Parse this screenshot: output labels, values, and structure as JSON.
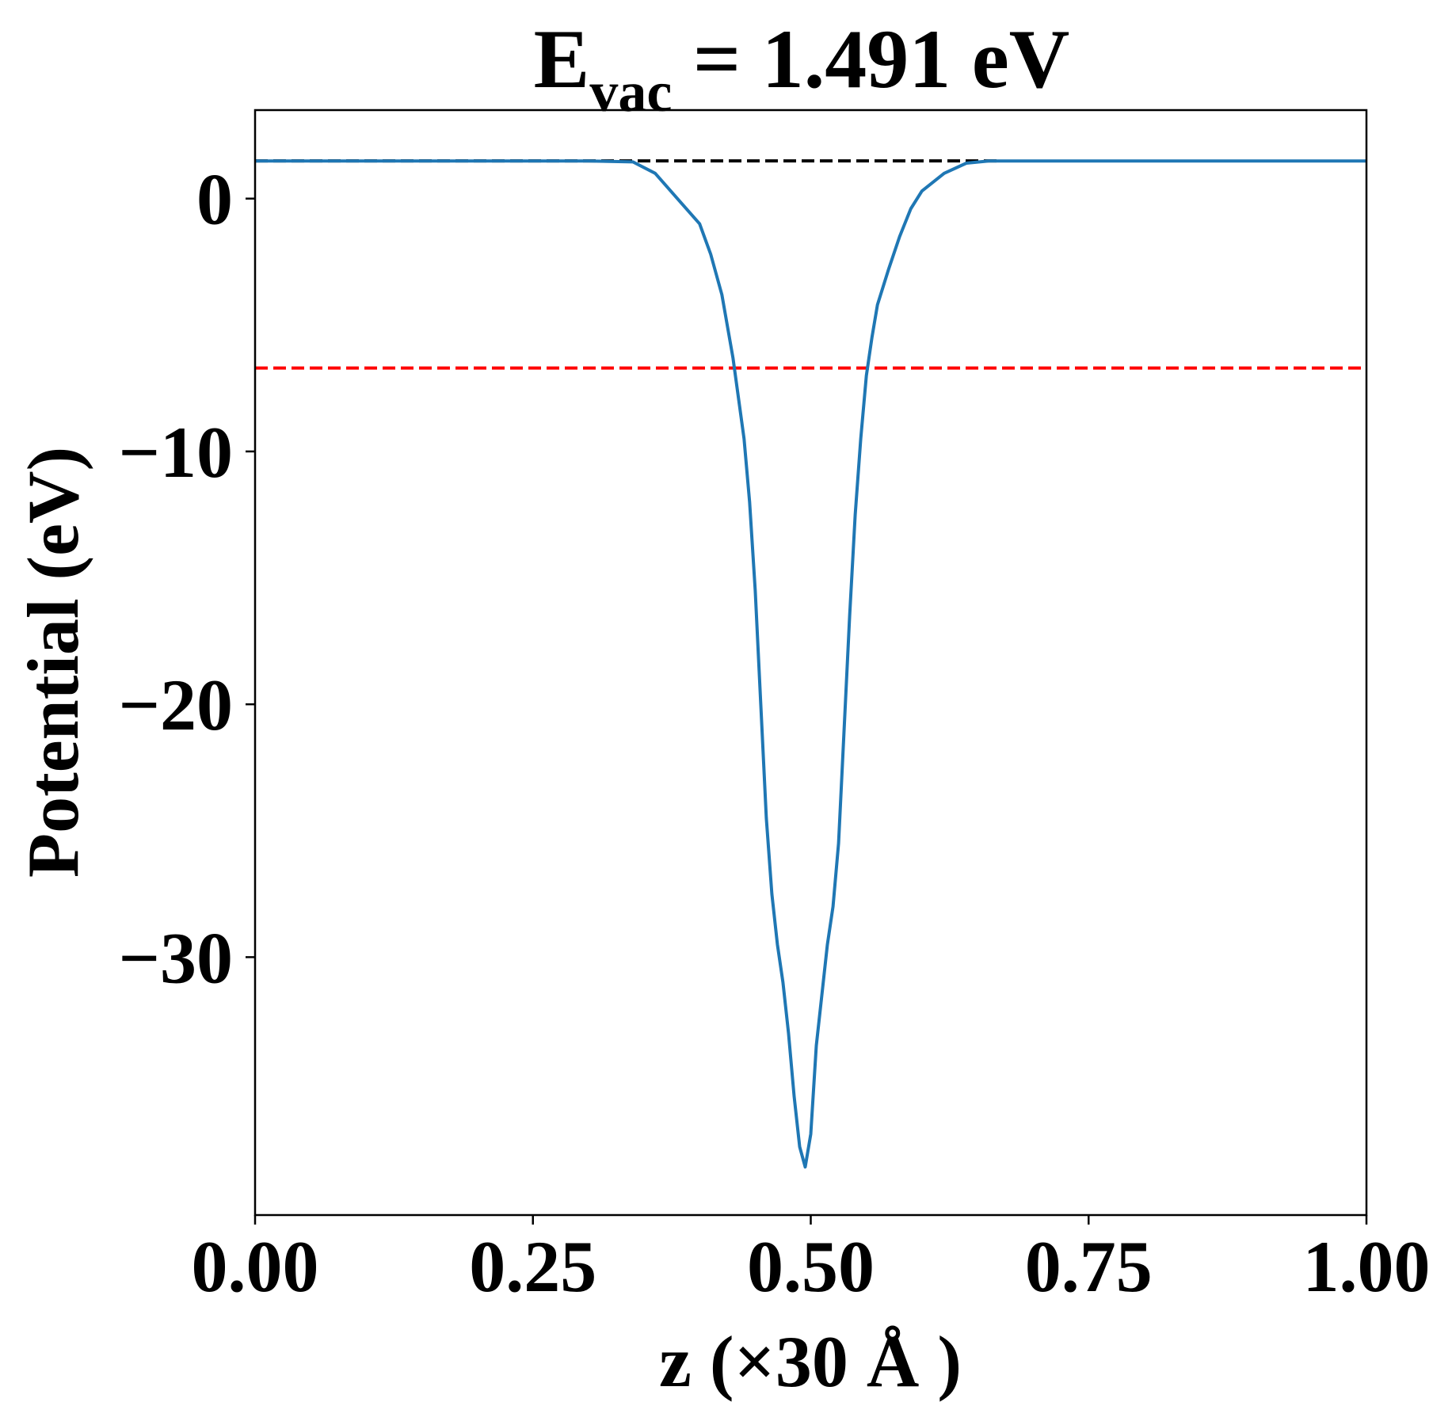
{
  "title": {
    "main": "E",
    "subscript": "vac",
    "rest": " = 1.491 eV"
  },
  "chart_data": {
    "type": "line",
    "xlabel": "z (×30 Å )",
    "ylabel": "Potential (eV)",
    "xlim": [
      0.0,
      1.0
    ],
    "ylim": [
      -40.2,
      3.5
    ],
    "xticks": [
      0.0,
      0.25,
      0.5,
      0.75,
      1.0
    ],
    "xtick_labels": [
      "0.00",
      "0.25",
      "0.50",
      "0.75",
      "1.00"
    ],
    "yticks": [
      0,
      -10,
      -20,
      -30
    ],
    "ytick_labels": [
      "0",
      "−10",
      "−20",
      "−30"
    ],
    "grid": false,
    "series": [
      {
        "color": "#1f77b4",
        "x": [
          0.0,
          0.1,
          0.2,
          0.3,
          0.34,
          0.36,
          0.38,
          0.4,
          0.41,
          0.42,
          0.43,
          0.44,
          0.445,
          0.45,
          0.455,
          0.46,
          0.465,
          0.47,
          0.475,
          0.48,
          0.485,
          0.49,
          0.495,
          0.5,
          0.505,
          0.51,
          0.515,
          0.52,
          0.525,
          0.53,
          0.535,
          0.54,
          0.545,
          0.55,
          0.555,
          0.56,
          0.57,
          0.58,
          0.59,
          0.6,
          0.62,
          0.64,
          0.66,
          0.7,
          0.8,
          0.9,
          1.0
        ],
        "y": [
          1.49,
          1.49,
          1.49,
          1.49,
          1.45,
          1.0,
          0.0,
          -1.0,
          -2.2,
          -3.8,
          -6.3,
          -9.5,
          -12.0,
          -15.5,
          -20.0,
          -24.5,
          -27.5,
          -29.5,
          -31.0,
          -33.0,
          -35.5,
          -37.5,
          -38.3,
          -37.0,
          -33.5,
          -31.5,
          -29.5,
          -28.0,
          -25.5,
          -21.0,
          -16.5,
          -12.5,
          -9.5,
          -7.0,
          -5.5,
          -4.2,
          -2.8,
          -1.5,
          -0.4,
          0.3,
          1.0,
          1.4,
          1.49,
          1.49,
          1.49,
          1.49,
          1.49
        ]
      }
    ],
    "reference_lines": [
      {
        "y": 1.491,
        "color": "#000000",
        "style": "dashed",
        "x_range": [
          0.0,
          0.67
        ]
      },
      {
        "y": -6.7,
        "color": "#ff0000",
        "style": "dashed",
        "x_range": [
          0.0,
          1.0
        ]
      }
    ]
  }
}
